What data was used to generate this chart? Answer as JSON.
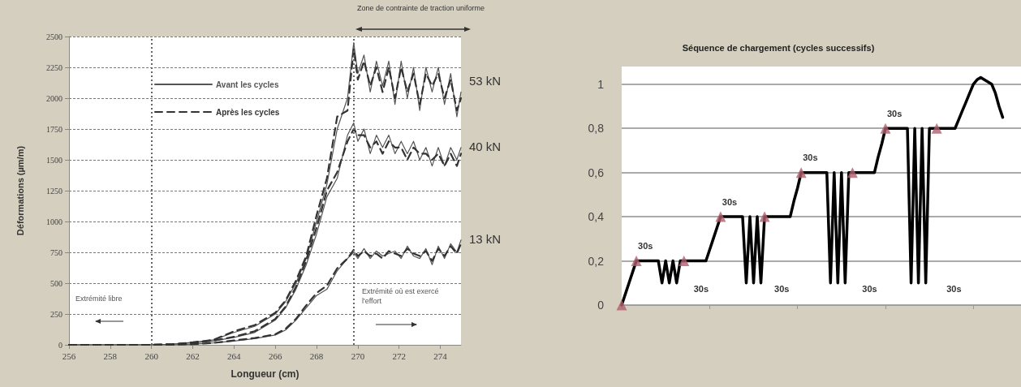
{
  "chart_data": [
    {
      "type": "line",
      "xlabel": "Longueur (cm)",
      "ylabel": "Déformations (µm/m)",
      "x": [
        256,
        258,
        260,
        261,
        262,
        263,
        264,
        265,
        266,
        266.5,
        267,
        267.5,
        268,
        268.5,
        269,
        269.5,
        269.8,
        270,
        270.3,
        270.6,
        270.9,
        271.2,
        271.5,
        271.8,
        272.1,
        272.4,
        272.7,
        273,
        273.3,
        273.6,
        273.9,
        274.2,
        274.5,
        274.8,
        275
      ],
      "series": [
        {
          "name": "Avant les cycles",
          "color": "#555555",
          "line_style": "solid",
          "values": [
            0,
            0,
            0,
            5,
            20,
            40,
            100,
            150,
            250,
            350,
            500,
            700,
            1000,
            1300,
            1750,
            2000,
            2450,
            2200,
            2350,
            2050,
            2300,
            2100,
            2300,
            1950,
            2300,
            2000,
            2250,
            1900,
            2250,
            2050,
            2250,
            1950,
            2200,
            1850,
            2050
          ]
        },
        {
          "name": "Après les cycles",
          "color": "#333333",
          "line_style": "dashed",
          "values": [
            0,
            0,
            0,
            5,
            20,
            40,
            110,
            160,
            260,
            360,
            520,
            720,
            1050,
            1350,
            1850,
            1900,
            2400,
            2150,
            2300,
            2100,
            2250,
            2050,
            2250,
            2000,
            2250,
            2050,
            2200,
            1950,
            2200,
            2100,
            2200,
            2000,
            2150,
            1900,
            2000
          ]
        },
        {
          "color": "#555555",
          "line_style": "solid",
          "values": [
            0,
            0,
            0,
            5,
            15,
            30,
            60,
            100,
            200,
            300,
            450,
            650,
            900,
            1200,
            1350,
            1700,
            1800,
            1650,
            1750,
            1550,
            1700,
            1600,
            1700,
            1550,
            1650,
            1550,
            1650,
            1500,
            1600,
            1450,
            1600,
            1450,
            1600,
            1500,
            1600
          ]
        },
        {
          "color": "#333333",
          "line_style": "dashed",
          "values": [
            0,
            0,
            0,
            5,
            15,
            35,
            65,
            110,
            210,
            310,
            470,
            680,
            950,
            1250,
            1400,
            1650,
            1750,
            1700,
            1700,
            1600,
            1650,
            1550,
            1650,
            1600,
            1600,
            1500,
            1600,
            1550,
            1550,
            1500,
            1550,
            1450,
            1550,
            1450,
            1550
          ]
        },
        {
          "color": "#555555",
          "line_style": "solid",
          "values": [
            0,
            0,
            0,
            0,
            5,
            15,
            30,
            50,
            80,
            120,
            200,
            300,
            400,
            450,
            600,
            700,
            750,
            700,
            780,
            700,
            760,
            720,
            740,
            760,
            700,
            800,
            720,
            700,
            780,
            650,
            800,
            700,
            820,
            750,
            850
          ]
        },
        {
          "color": "#333333",
          "line_style": "dashed",
          "values": [
            0,
            0,
            0,
            0,
            5,
            15,
            35,
            55,
            85,
            130,
            210,
            320,
            420,
            480,
            620,
            700,
            770,
            720,
            760,
            720,
            740,
            700,
            760,
            740,
            720,
            780,
            740,
            720,
            760,
            680,
            780,
            720,
            800,
            740,
            820
          ]
        }
      ],
      "xlim": [
        256,
        275
      ],
      "xticks": [
        256,
        258,
        260,
        262,
        264,
        266,
        268,
        270,
        272,
        274
      ],
      "ylim": [
        0,
        2500
      ],
      "yticks": [
        0,
        250,
        500,
        750,
        1000,
        1250,
        1500,
        1750,
        2000,
        2250,
        2500
      ],
      "grid": "y",
      "legend": "top",
      "marker": "none",
      "ref_lines": [
        {
          "axis": "x",
          "value": 260,
          "color": "#666666",
          "line_style": "dotted"
        },
        {
          "axis": "x",
          "value": 269.8,
          "color": "#666666",
          "line_style": "dotted"
        }
      ],
      "annotations": [
        "Zone de contrainte de traction uniforme",
        "Extrémité libre",
        "Extrémité où est exercé l'effort",
        "53 kN",
        "40 kN",
        "13 kN"
      ]
    },
    {
      "type": "line",
      "title": "Séquence de chargement (cycles successifs)",
      "categories": [
        null,
        null,
        null,
        null,
        null,
        null,
        null,
        null,
        null,
        null,
        null,
        null,
        null,
        null,
        null,
        null,
        null,
        null,
        null,
        null,
        null,
        null,
        null,
        null,
        null,
        null,
        null,
        null,
        null,
        null,
        null,
        null,
        null,
        null,
        null,
        null,
        null,
        null,
        null,
        null,
        null,
        null,
        null,
        null,
        null,
        null,
        null,
        null,
        null,
        null,
        null,
        null,
        null,
        null,
        null,
        null,
        null,
        null,
        null,
        null,
        null,
        null,
        null,
        null,
        null,
        null,
        null,
        null,
        null,
        null,
        null,
        null,
        null,
        null,
        null,
        null,
        null,
        null,
        null,
        null,
        null,
        null,
        null,
        null,
        null,
        null,
        null,
        null,
        null,
        null,
        null,
        null,
        null,
        null,
        null,
        null,
        null,
        null,
        null,
        null,
        null,
        null,
        null,
        null,
        null,
        null,
        null,
        null,
        null,
        null
      ],
      "series": [
        {
          "color": "#000000",
          "marker": "none",
          "values": [
            0,
            0.05,
            0.1,
            0.15,
            0.2,
            0.2,
            0.2,
            0.2,
            0.2,
            0.2,
            0.2,
            0.1,
            0.2,
            0.1,
            0.2,
            0.1,
            0.2,
            0.2,
            0.2,
            0.2,
            0.2,
            0.2,
            0.2,
            0.2,
            0.25,
            0.3,
            0.35,
            0.4,
            0.4,
            0.4,
            0.4,
            0.4,
            0.4,
            0.4,
            0.1,
            0.4,
            0.1,
            0.4,
            0.1,
            0.4,
            0.4,
            0.4,
            0.4,
            0.4,
            0.4,
            0.4,
            0.4,
            0.47,
            0.53,
            0.6,
            0.6,
            0.6,
            0.6,
            0.6,
            0.6,
            0.6,
            0.6,
            0.1,
            0.6,
            0.1,
            0.6,
            0.1,
            0.6,
            0.6,
            0.6,
            0.6,
            0.6,
            0.6,
            0.6,
            0.6,
            0.67,
            0.73,
            0.8,
            0.8,
            0.8,
            0.8,
            0.8,
            0.8,
            0.8,
            0.1,
            0.8,
            0.1,
            0.8,
            0.1,
            0.8,
            0.8,
            0.8,
            0.8,
            0.8,
            0.8,
            0.8,
            0.8,
            0.84,
            0.88,
            0.92,
            0.96,
            1,
            1.02,
            1.03,
            1.02,
            1.01,
            1,
            0.96,
            0.9,
            0.85,
            null,
            null,
            null,
            null,
            null
          ]
        },
        {
          "type": "scatter",
          "color": "#b0606e",
          "marker": "triangle",
          "values": [
            0,
            null,
            null,
            null,
            0.2,
            null,
            null,
            null,
            null,
            null,
            null,
            null,
            null,
            null,
            null,
            null,
            null,
            0.2,
            null,
            null,
            null,
            null,
            null,
            null,
            null,
            null,
            null,
            0.4,
            null,
            null,
            null,
            null,
            null,
            null,
            null,
            null,
            null,
            null,
            null,
            0.4,
            null,
            null,
            null,
            null,
            null,
            null,
            null,
            null,
            null,
            0.6,
            null,
            null,
            null,
            null,
            null,
            null,
            null,
            null,
            null,
            null,
            null,
            null,
            null,
            0.6,
            null,
            null,
            null,
            null,
            null,
            null,
            null,
            null,
            0.8,
            null,
            null,
            null,
            null,
            null,
            null,
            null,
            null,
            null,
            null,
            null,
            null,
            null,
            0.8,
            null,
            null,
            null,
            null,
            null,
            null,
            null,
            null,
            null,
            null,
            null,
            null,
            null,
            null,
            null,
            null,
            null,
            null,
            null,
            null,
            null,
            null,
            null
          ]
        }
      ],
      "annotations": [
        "30s",
        "30s",
        "30s",
        "30s",
        "30s",
        "30s",
        "30s",
        "30s"
      ],
      "ylim": [
        0,
        1.08
      ],
      "yticks": [
        {
          "value": 0,
          "label": "0"
        },
        {
          "value": 0.2,
          "label": "0,2"
        },
        {
          "value": 0.4,
          "label": "0,4"
        },
        {
          "value": 0.6,
          "label": "0,6"
        },
        {
          "value": 0.8,
          "label": "0,8"
        },
        {
          "value": 1,
          "label": "1"
        }
      ],
      "grid": "y",
      "tick_labels": "y"
    }
  ]
}
